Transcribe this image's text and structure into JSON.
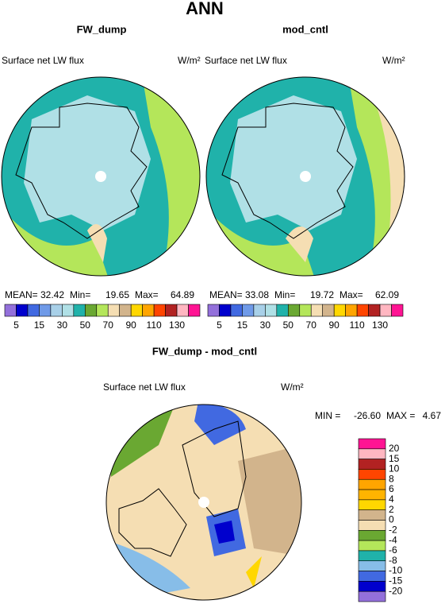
{
  "title": "ANN",
  "panels": [
    {
      "title": "FW_dump",
      "variable": "Surface net LW flux",
      "units": "W/m²",
      "stats": [
        {
          "label": "MEAN=",
          "value": "32.42"
        },
        {
          "label": "Min=",
          "value": "19.65"
        },
        {
          "label": "Max=",
          "value": "64.89"
        }
      ]
    },
    {
      "title": "mod_cntl",
      "variable": "Surface net LW flux",
      "units": "W/m²",
      "stats": [
        {
          "label": "MEAN=",
          "value": "33.08"
        },
        {
          "label": "Min=",
          "value": "19.72"
        },
        {
          "label": "Max=",
          "value": "62.09"
        }
      ]
    }
  ],
  "colorbar": {
    "labels": [
      5,
      15,
      30,
      50,
      70,
      90,
      110,
      130
    ],
    "colors": [
      "#9370db",
      "#0000cd",
      "#4169e1",
      "#6f9ae8",
      "#a8d0e8",
      "#b0e0e6",
      "#20b2aa",
      "#6aa832",
      "#b4e65a",
      "#f5deb3",
      "#d2b48c",
      "#ffd700",
      "#ffa500",
      "#ff4500",
      "#b22222",
      "#ffb6c1",
      "#ff1493"
    ]
  },
  "difference": {
    "title": "FW_dump - mod_cntl",
    "variable": "Surface net LW flux",
    "units": "W/m²",
    "stats": [
      {
        "label": "MIN =",
        "value": "-26.60"
      },
      {
        "label": "MAX =",
        "value": "4.67"
      }
    ],
    "colorbar": {
      "labels": [
        20,
        15,
        10,
        8,
        6,
        4,
        2,
        0,
        -2,
        -4,
        -6,
        -8,
        -10,
        -15,
        -20
      ],
      "colors": [
        "#ff1493",
        "#ffb6c1",
        "#b22222",
        "#ff4500",
        "#ffa500",
        "#ffb400",
        "#ffd700",
        "#d2b48c",
        "#f5deb3",
        "#6aa832",
        "#b4e65a",
        "#20b2aa",
        "#87bde8",
        "#4169e1",
        "#0000cd",
        "#9370db"
      ]
    }
  }
}
